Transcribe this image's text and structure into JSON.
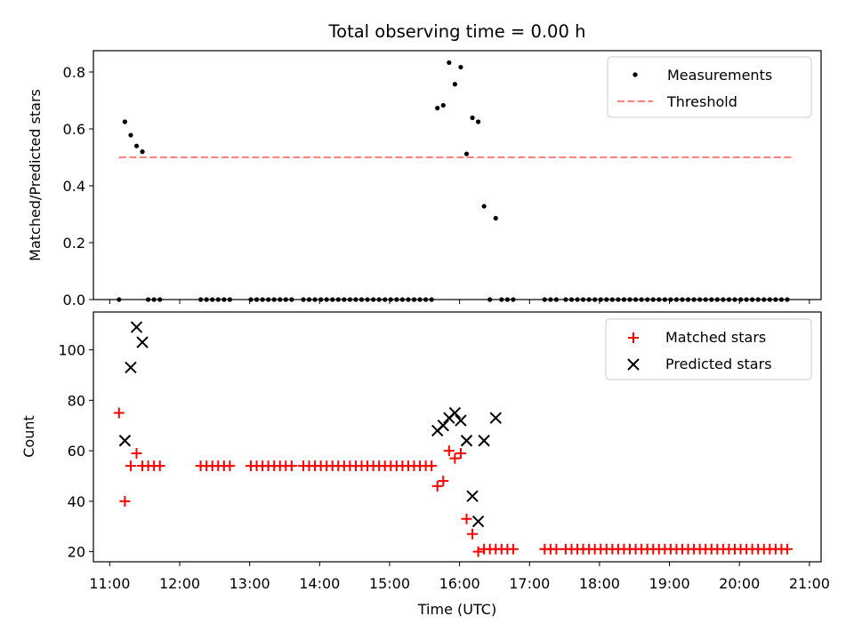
{
  "chart_data": [
    {
      "type": "scatter",
      "title": "Total observing time = 0.00 h",
      "ylabel": "Matched/Predicted stars",
      "ylim": [
        0,
        0.875
      ],
      "yticks": [
        0.0,
        0.2,
        0.4,
        0.6,
        0.8
      ],
      "ytick_labels": [
        "0.0",
        "0.2",
        "0.4",
        "0.6",
        "0.8"
      ],
      "xlim": [
        "10:46",
        "21:10"
      ],
      "grid": false,
      "legend_position": "top-right",
      "series": [
        {
          "name": "Measurements",
          "style": "dot",
          "color": "#000000",
          "points": [
            [
              "11:08",
              0.0
            ],
            [
              "11:13",
              0.625
            ],
            [
              "11:18",
              0.578
            ],
            [
              "11:23",
              0.54
            ],
            [
              "11:28",
              0.52
            ],
            [
              "11:33",
              0.0
            ],
            [
              "11:38",
              0.0
            ],
            [
              "11:43",
              0.0
            ],
            [
              "12:18",
              0.0
            ],
            [
              "12:23",
              0.0
            ],
            [
              "12:28",
              0.0
            ],
            [
              "12:33",
              0.0
            ],
            [
              "12:38",
              0.0
            ],
            [
              "12:43",
              0.0
            ],
            [
              "13:01",
              0.0
            ],
            [
              "13:06",
              0.0
            ],
            [
              "13:11",
              0.0
            ],
            [
              "13:16",
              0.0
            ],
            [
              "13:21",
              0.0
            ],
            [
              "13:26",
              0.0
            ],
            [
              "13:31",
              0.0
            ],
            [
              "13:36",
              0.0
            ],
            [
              "13:46",
              0.0
            ],
            [
              "13:51",
              0.0
            ],
            [
              "13:56",
              0.0
            ],
            [
              "14:01",
              0.0
            ],
            [
              "14:06",
              0.0
            ],
            [
              "14:11",
              0.0
            ],
            [
              "14:16",
              0.0
            ],
            [
              "14:21",
              0.0
            ],
            [
              "14:26",
              0.0
            ],
            [
              "14:31",
              0.0
            ],
            [
              "14:36",
              0.0
            ],
            [
              "14:41",
              0.0
            ],
            [
              "14:46",
              0.0
            ],
            [
              "14:51",
              0.0
            ],
            [
              "14:56",
              0.0
            ],
            [
              "15:01",
              0.0
            ],
            [
              "15:06",
              0.0
            ],
            [
              "15:11",
              0.0
            ],
            [
              "15:16",
              0.0
            ],
            [
              "15:21",
              0.0
            ],
            [
              "15:26",
              0.0
            ],
            [
              "15:31",
              0.0
            ],
            [
              "15:36",
              0.0
            ],
            [
              "15:41",
              0.673
            ],
            [
              "15:46",
              0.683
            ],
            [
              "15:51",
              0.833
            ],
            [
              "15:56",
              0.757
            ],
            [
              "16:01",
              0.817
            ],
            [
              "16:06",
              0.512
            ],
            [
              "16:11",
              0.639
            ],
            [
              "16:16",
              0.625
            ],
            [
              "16:21",
              0.328
            ],
            [
              "16:26",
              0.0
            ],
            [
              "16:31",
              0.286
            ],
            [
              "16:36",
              0.0
            ],
            [
              "16:41",
              0.0
            ],
            [
              "16:46",
              0.0
            ],
            [
              "17:13",
              0.0
            ],
            [
              "17:18",
              0.0
            ],
            [
              "17:23",
              0.0
            ],
            [
              "17:31",
              0.0
            ],
            [
              "17:36",
              0.0
            ],
            [
              "17:41",
              0.0
            ],
            [
              "17:46",
              0.0
            ],
            [
              "17:51",
              0.0
            ],
            [
              "17:56",
              0.0
            ],
            [
              "18:01",
              0.0
            ],
            [
              "18:06",
              0.0
            ],
            [
              "18:11",
              0.0
            ],
            [
              "18:16",
              0.0
            ],
            [
              "18:21",
              0.0
            ],
            [
              "18:26",
              0.0
            ],
            [
              "18:31",
              0.0
            ],
            [
              "18:36",
              0.0
            ],
            [
              "18:41",
              0.0
            ],
            [
              "18:46",
              0.0
            ],
            [
              "18:51",
              0.0
            ],
            [
              "18:56",
              0.0
            ],
            [
              "19:01",
              0.0
            ],
            [
              "19:06",
              0.0
            ],
            [
              "19:11",
              0.0
            ],
            [
              "19:16",
              0.0
            ],
            [
              "19:21",
              0.0
            ],
            [
              "19:26",
              0.0
            ],
            [
              "19:31",
              0.0
            ],
            [
              "19:36",
              0.0
            ],
            [
              "19:41",
              0.0
            ],
            [
              "19:46",
              0.0
            ],
            [
              "19:51",
              0.0
            ],
            [
              "19:56",
              0.0
            ],
            [
              "20:01",
              0.0
            ],
            [
              "20:06",
              0.0
            ],
            [
              "20:11",
              0.0
            ],
            [
              "20:16",
              0.0
            ],
            [
              "20:21",
              0.0
            ],
            [
              "20:26",
              0.0
            ],
            [
              "20:31",
              0.0
            ],
            [
              "20:36",
              0.0
            ],
            [
              "20:41",
              0.0
            ]
          ]
        },
        {
          "name": "Threshold",
          "style": "dashed-line",
          "color": "#ff7f7f",
          "points": [
            [
              "11:08",
              0.5
            ],
            [
              "20:45",
              0.5
            ]
          ]
        }
      ]
    },
    {
      "type": "scatter",
      "xlabel": "Time (UTC)",
      "ylabel": "Count",
      "ylim": [
        16,
        115
      ],
      "yticks": [
        20,
        40,
        60,
        80,
        100
      ],
      "ytick_labels": [
        "20",
        "40",
        "60",
        "80",
        "100"
      ],
      "xlim": [
        "10:46",
        "21:10"
      ],
      "xticks": [
        "11:00",
        "12:00",
        "13:00",
        "14:00",
        "15:00",
        "16:00",
        "17:00",
        "18:00",
        "19:00",
        "20:00",
        "21:00"
      ],
      "xtick_labels": [
        "11:00",
        "12:00",
        "13:00",
        "14:00",
        "15:00",
        "16:00",
        "17:00",
        "18:00",
        "19:00",
        "20:00",
        "21:00"
      ],
      "grid": false,
      "legend_position": "top-right",
      "series": [
        {
          "name": "Matched stars",
          "marker": "plus",
          "color": "#ff0000",
          "points": [
            [
              "11:08",
              75
            ],
            [
              "11:13",
              40
            ],
            [
              "11:18",
              54
            ],
            [
              "11:23",
              59
            ],
            [
              "11:28",
              54
            ],
            [
              "11:33",
              54
            ],
            [
              "11:38",
              54
            ],
            [
              "11:43",
              54
            ],
            [
              "12:18",
              54
            ],
            [
              "12:23",
              54
            ],
            [
              "12:28",
              54
            ],
            [
              "12:33",
              54
            ],
            [
              "12:38",
              54
            ],
            [
              "12:43",
              54
            ],
            [
              "13:01",
              54
            ],
            [
              "13:06",
              54
            ],
            [
              "13:11",
              54
            ],
            [
              "13:16",
              54
            ],
            [
              "13:21",
              54
            ],
            [
              "13:26",
              54
            ],
            [
              "13:31",
              54
            ],
            [
              "13:36",
              54
            ],
            [
              "13:46",
              54
            ],
            [
              "13:51",
              54
            ],
            [
              "13:56",
              54
            ],
            [
              "14:01",
              54
            ],
            [
              "14:06",
              54
            ],
            [
              "14:11",
              54
            ],
            [
              "14:16",
              54
            ],
            [
              "14:21",
              54
            ],
            [
              "14:26",
              54
            ],
            [
              "14:31",
              54
            ],
            [
              "14:36",
              54
            ],
            [
              "14:41",
              54
            ],
            [
              "14:46",
              54
            ],
            [
              "14:51",
              54
            ],
            [
              "14:56",
              54
            ],
            [
              "15:01",
              54
            ],
            [
              "15:06",
              54
            ],
            [
              "15:11",
              54
            ],
            [
              "15:16",
              54
            ],
            [
              "15:21",
              54
            ],
            [
              "15:26",
              54
            ],
            [
              "15:31",
              54
            ],
            [
              "15:36",
              54
            ],
            [
              "15:41",
              46
            ],
            [
              "15:46",
              48
            ],
            [
              "15:51",
              60
            ],
            [
              "15:56",
              57
            ],
            [
              "16:01",
              59
            ],
            [
              "16:06",
              33
            ],
            [
              "16:11",
              27
            ],
            [
              "16:16",
              20
            ],
            [
              "16:21",
              21
            ],
            [
              "16:26",
              21
            ],
            [
              "16:31",
              21
            ],
            [
              "16:36",
              21
            ],
            [
              "16:41",
              21
            ],
            [
              "16:46",
              21
            ],
            [
              "17:13",
              21
            ],
            [
              "17:18",
              21
            ],
            [
              "17:23",
              21
            ],
            [
              "17:31",
              21
            ],
            [
              "17:36",
              21
            ],
            [
              "17:41",
              21
            ],
            [
              "17:46",
              21
            ],
            [
              "17:51",
              21
            ],
            [
              "17:56",
              21
            ],
            [
              "18:01",
              21
            ],
            [
              "18:06",
              21
            ],
            [
              "18:11",
              21
            ],
            [
              "18:16",
              21
            ],
            [
              "18:21",
              21
            ],
            [
              "18:26",
              21
            ],
            [
              "18:31",
              21
            ],
            [
              "18:36",
              21
            ],
            [
              "18:41",
              21
            ],
            [
              "18:46",
              21
            ],
            [
              "18:51",
              21
            ],
            [
              "18:56",
              21
            ],
            [
              "19:01",
              21
            ],
            [
              "19:06",
              21
            ],
            [
              "19:11",
              21
            ],
            [
              "19:16",
              21
            ],
            [
              "19:21",
              21
            ],
            [
              "19:26",
              21
            ],
            [
              "19:31",
              21
            ],
            [
              "19:36",
              21
            ],
            [
              "19:41",
              21
            ],
            [
              "19:46",
              21
            ],
            [
              "19:51",
              21
            ],
            [
              "19:56",
              21
            ],
            [
              "20:01",
              21
            ],
            [
              "20:06",
              21
            ],
            [
              "20:11",
              21
            ],
            [
              "20:16",
              21
            ],
            [
              "20:21",
              21
            ],
            [
              "20:26",
              21
            ],
            [
              "20:31",
              21
            ],
            [
              "20:36",
              21
            ],
            [
              "20:41",
              21
            ]
          ]
        },
        {
          "name": "Predicted stars",
          "marker": "x",
          "color": "#000000",
          "points": [
            [
              "11:13",
              64
            ],
            [
              "11:18",
              93
            ],
            [
              "11:23",
              109
            ],
            [
              "11:28",
              103
            ],
            [
              "15:41",
              68
            ],
            [
              "15:46",
              70
            ],
            [
              "15:51",
              73
            ],
            [
              "15:56",
              75
            ],
            [
              "16:01",
              72
            ],
            [
              "16:06",
              64
            ],
            [
              "16:11",
              42
            ],
            [
              "16:16",
              32
            ],
            [
              "16:21",
              64
            ],
            [
              "16:31",
              73
            ]
          ]
        }
      ]
    }
  ]
}
